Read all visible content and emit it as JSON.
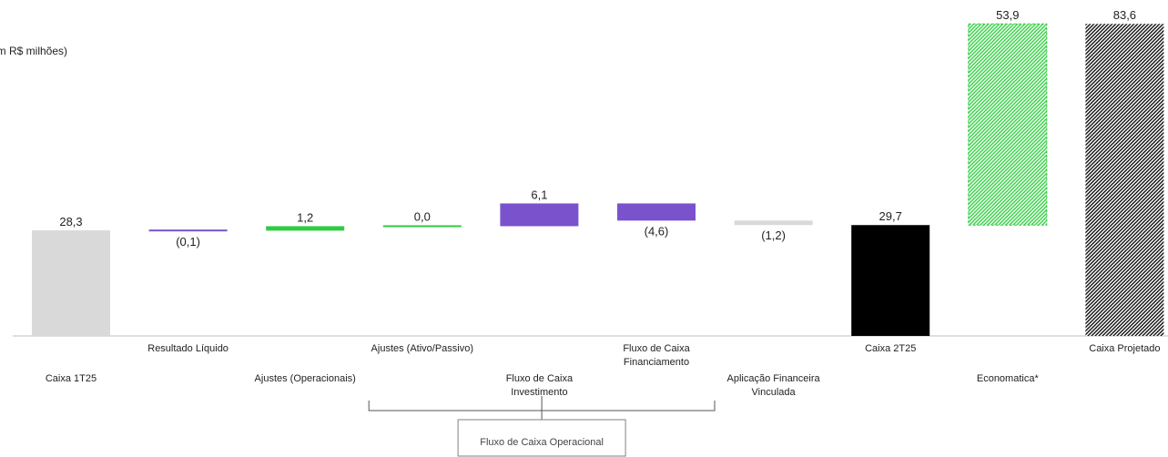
{
  "chart_data": {
    "type": "waterfall",
    "unit_label": "(em R$ milhões)",
    "categories": [
      "Caixa 1T25",
      "Resultado Líquido",
      "Ajustes (Operacionais)",
      "Ajustes (Ativo/Passivo)",
      "Fluxo de Caixa Investimento",
      "Fluxo de Caixa Financiamento",
      "Aplicação Financeira Vinculada",
      "Caixa 2T25",
      "Economatica*",
      "Caixa Projetado"
    ],
    "category_lines": [
      [
        "Caixa 1T25"
      ],
      [
        "Resultado Líquido"
      ],
      [
        "Ajustes (Operacionais)"
      ],
      [
        "Ajustes (Ativo/Passivo)"
      ],
      [
        "Fluxo de Caixa",
        "Investimento"
      ],
      [
        "Fluxo de Caixa",
        "Financiamento"
      ],
      [
        "Aplicação Financeira",
        "Vinculada"
      ],
      [
        "Caixa 2T25"
      ],
      [
        "Economatica*"
      ],
      [
        "Caixa Projetado"
      ]
    ],
    "values": [
      28.3,
      -0.1,
      1.2,
      0.0,
      6.1,
      -4.6,
      -1.2,
      29.7,
      53.9,
      83.6
    ],
    "value_labels": [
      "28,3",
      "(0,1)",
      "1,2",
      "0,0",
      "6,1",
      "(4,6)",
      "(1,2)",
      "29,7",
      "53,9",
      "83,6"
    ],
    "bar_kinds": [
      "total",
      "delta",
      "delta",
      "delta",
      "delta",
      "delta",
      "delta",
      "total",
      "delta",
      "total"
    ],
    "bar_colors": [
      "#d9d9d9",
      "#7a52cc",
      "#2ecc40",
      "#2ecc40",
      "#7a52cc",
      "#7a52cc",
      "#d9d9d9",
      "#000000",
      "#2ecc40",
      "#333333"
    ],
    "ylim": [
      0,
      90
    ],
    "grid": false,
    "bracket": {
      "label": "Fluxo de Caixa Operacional",
      "from_category": "Ajustes (Operacionais)",
      "to_category": "Fluxo de Caixa Financiamento"
    }
  }
}
